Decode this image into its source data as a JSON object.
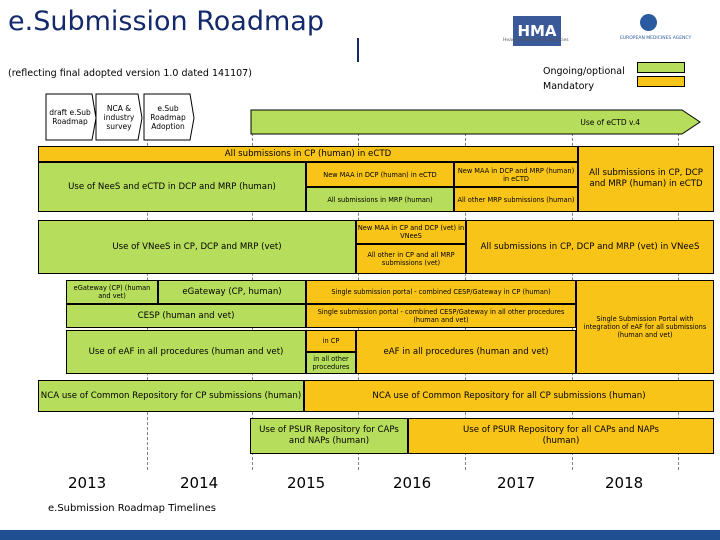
{
  "header": {
    "title": "e.Submission Roadmap",
    "subtitle": "(reflecting final adopted version 1.0 dated 141107)"
  },
  "logos": {
    "hma": "HMA",
    "hma_caption": "Heads of Medicines Agencies",
    "ema_caption": "EUROPEAN MEDICINES AGENCY"
  },
  "legend": {
    "optional": "Ongoing/optional",
    "mandatory": "Mandatory",
    "optional_color": "#b6dd5c",
    "mandatory_color": "#f8c418"
  },
  "milestones": {
    "draft": "draft e.Sub Roadmap",
    "nca": "NCA & industry survey",
    "adoption": "e.Sub Roadmap Adoption",
    "ectd4": "Use of eCTD v.4"
  },
  "rows": {
    "cp_human": "All submissions in CP (human) in eCTD",
    "nees_ectd": "Use of NeeS and eCTD in DCP and MRP (human)",
    "new_maa_dcp": "New MAA in DCP (human) in eCTD",
    "all_mrp": "All submissions in MRP (human)",
    "new_maa_dcp_mrp": "New MAA in DCP and MRP (human) in eCTD",
    "all_other_mrp": "All other MRP submissions (human)",
    "all_cp_dcp_mrp_human": "All submissions in CP, DCP and MRP (human) in eCTD",
    "vnees": "Use of VNeeS in CP, DCP and MRP (vet)",
    "new_maa_vet": "New MAA in CP and DCP (vet) in VNeeS",
    "all_other_vet": "All other in CP and all MRP submissions (vet)",
    "all_vet": "All submissions in CP, DCP and MRP (vet) in VNeeS",
    "egateway_cp": "eGateway (CP) (human and vet)",
    "egateway_human": "eGateway (CP, human)",
    "single_portal_cp": "Single submission portal - combined CESP/Gateway in CP (human)",
    "cesp": "CESP (human and vet)",
    "single_portal_other": "Single submission portal - combined CESP/Gateway in all other procedures (human and vet)",
    "single_portal_eaf": "Single Submission Portal with integration of eAF for all submissions (human and vet)",
    "eaf_all": "Use of eAF in all procedures (human and vet)",
    "eaf_in_cp": "in CP",
    "eaf_other": "in all other procedures",
    "eaf_mandatory": "eAF in all procedures (human and vet)",
    "common_repo": "NCA use of Common Repository for CP submissions (human)",
    "common_repo_all": "NCA use of Common Repository for all CP submissions (human)",
    "psur_caps": "Use of PSUR Repository for CAPs and NAPs (human)",
    "psur_all": "Use of PSUR Repository for all CAPs and NAPs (human)"
  },
  "years": [
    "2013",
    "2014",
    "2015",
    "2016",
    "2017",
    "2018"
  ],
  "footer": "e.Submission Roadmap Timelines"
}
